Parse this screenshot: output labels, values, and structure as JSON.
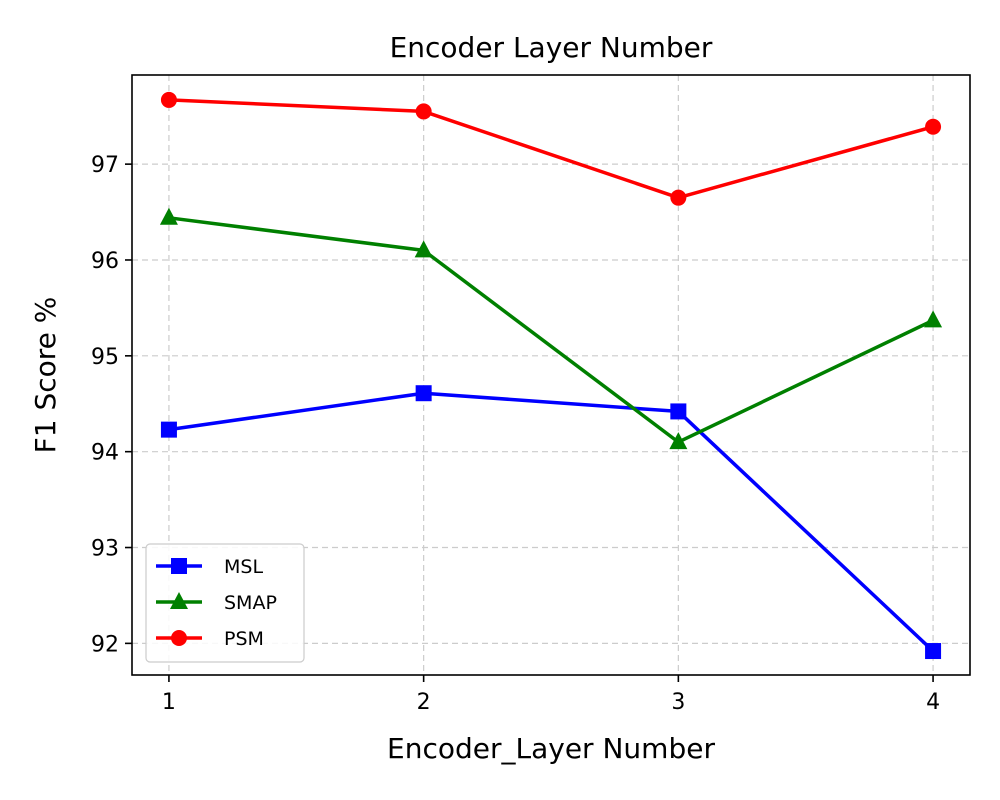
{
  "chart_data": {
    "type": "line",
    "title": "Encoder Layer Number",
    "xlabel": "Encoder_Layer Number",
    "ylabel": "F1 Score %",
    "x": [
      1,
      2,
      3,
      4
    ],
    "xlim": [
      0.855,
      4.145
    ],
    "ylim": [
      91.67,
      97.93
    ],
    "xticks": [
      1,
      2,
      3,
      4
    ],
    "yticks": [
      92,
      93,
      94,
      95,
      96,
      97
    ],
    "grid": true,
    "legend_position": "lower-left",
    "series": [
      {
        "name": "MSL",
        "values": [
          94.23,
          94.61,
          94.42,
          91.92
        ],
        "color": "#0000ff",
        "marker": "square"
      },
      {
        "name": "SMAP",
        "values": [
          96.44,
          96.1,
          94.1,
          95.37
        ],
        "color": "#008000",
        "marker": "triangle"
      },
      {
        "name": "PSM",
        "values": [
          97.67,
          97.55,
          96.65,
          97.39
        ],
        "color": "#ff0000",
        "marker": "circle"
      }
    ]
  }
}
